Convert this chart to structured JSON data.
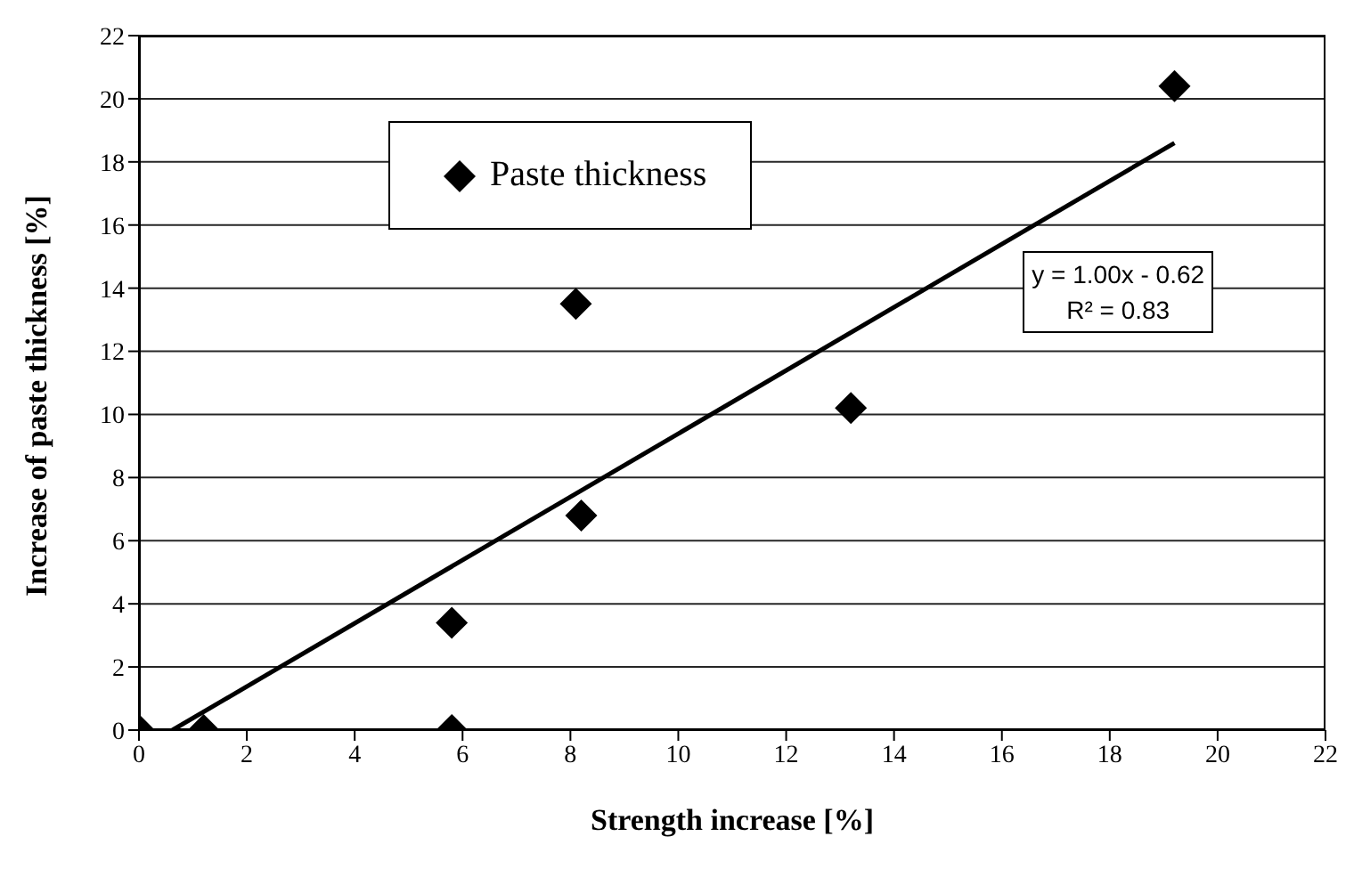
{
  "chart_data": {
    "type": "scatter",
    "xlabel": "Strength increase [%]",
    "ylabel": "Increase of paste thickness [%]",
    "xlim": [
      0,
      22
    ],
    "xticks": [
      0,
      2,
      4,
      6,
      8,
      10,
      12,
      14,
      16,
      18,
      20,
      22
    ],
    "ylim": [
      0,
      22
    ],
    "yticks": [
      0,
      2,
      4,
      6,
      8,
      10,
      12,
      14,
      16,
      18,
      20,
      22
    ],
    "grid": "y",
    "legend": "top left",
    "series": [
      {
        "name": "Paste thickness",
        "marker": "diamond",
        "color": "#000000",
        "x": [
          0,
          1.2,
          5.8,
          5.8,
          8.1,
          8.2,
          13.2,
          19.2
        ],
        "values": [
          0,
          0,
          0,
          3.4,
          13.5,
          6.8,
          10.2,
          20.4
        ]
      },
      {
        "type": "line",
        "marker": "none",
        "color": "#000000",
        "x": [
          0.62,
          19.2
        ],
        "values": [
          0,
          18.6
        ]
      }
    ],
    "annotations": [
      "y = 1.00x - 0.62",
      "R² = 0.83"
    ]
  }
}
